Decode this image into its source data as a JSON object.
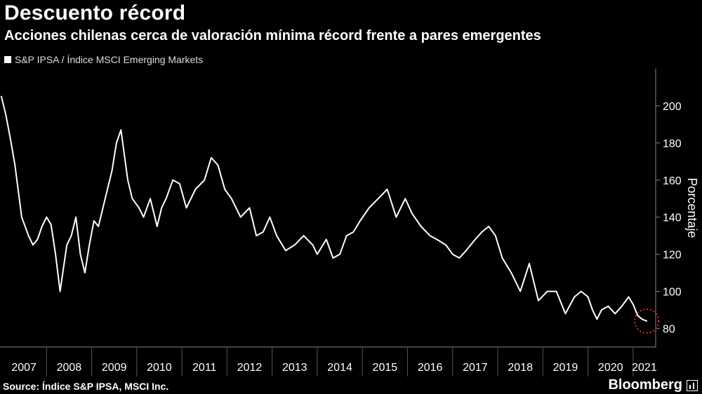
{
  "header": {
    "title": "Descuento récord",
    "subtitle": "Acciones chilenas cerca de valoración mínima récord frente a pares emergentes"
  },
  "footer": {
    "source": "Source: Índice S&P IPSA, MSCI Inc.",
    "brand": "Bloomberg",
    "brand_icon": "bloomberg-chart-icon"
  },
  "colors": {
    "background": "#000000",
    "series": "#ffffff",
    "highlight": "#e03030"
  },
  "chart_data": {
    "type": "line",
    "title": "Descuento récord",
    "ylabel": "Porcentaje",
    "ylim": [
      70,
      220
    ],
    "xlim": [
      2007.0,
      2021.5
    ],
    "y_ticks": [
      80,
      100,
      120,
      140,
      160,
      180,
      200
    ],
    "x_tick_labels": [
      "2007",
      "2008",
      "2009",
      "2010",
      "2011",
      "2012",
      "2013",
      "2014",
      "2015",
      "2016",
      "2017",
      "2018",
      "2019",
      "2020",
      "2021"
    ],
    "y_axis_side": "right",
    "grid": false,
    "legend_position": "top-left",
    "annotations": [
      {
        "type": "dotted-circle",
        "x": 2021.3,
        "y": 84
      }
    ],
    "series": [
      {
        "name": "S&P IPSA / Índice MSCI Emerging Markets",
        "x": [
          2007.0,
          2007.1,
          2007.2,
          2007.3,
          2007.45,
          2007.6,
          2007.7,
          2007.8,
          2007.9,
          2008.0,
          2008.1,
          2008.2,
          2008.3,
          2008.45,
          2008.55,
          2008.65,
          2008.75,
          2008.85,
          2008.95,
          2009.05,
          2009.15,
          2009.3,
          2009.45,
          2009.55,
          2009.65,
          2009.8,
          2009.9,
          2010.05,
          2010.15,
          2010.3,
          2010.45,
          2010.55,
          2010.65,
          2010.8,
          2010.95,
          2011.1,
          2011.3,
          2011.5,
          2011.65,
          2011.8,
          2011.95,
          2012.1,
          2012.3,
          2012.5,
          2012.65,
          2012.8,
          2012.95,
          2013.1,
          2013.3,
          2013.5,
          2013.7,
          2013.9,
          2014.0,
          2014.2,
          2014.35,
          2014.5,
          2014.65,
          2014.8,
          2014.95,
          2015.15,
          2015.35,
          2015.55,
          2015.75,
          2015.95,
          2016.1,
          2016.3,
          2016.5,
          2016.65,
          2016.85,
          2017.0,
          2017.15,
          2017.3,
          2017.5,
          2017.65,
          2017.8,
          2017.95,
          2018.1,
          2018.3,
          2018.5,
          2018.7,
          2018.9,
          2019.1,
          2019.3,
          2019.5,
          2019.7,
          2019.85,
          2020.0,
          2020.1,
          2020.2,
          2020.3,
          2020.45,
          2020.6,
          2020.75,
          2020.9,
          2021.0,
          2021.1,
          2021.2,
          2021.3
        ],
        "values": [
          205,
          195,
          182,
          168,
          140,
          130,
          125,
          128,
          135,
          140,
          136,
          120,
          100,
          125,
          130,
          140,
          120,
          110,
          125,
          138,
          135,
          150,
          165,
          180,
          187,
          160,
          150,
          145,
          140,
          150,
          135,
          145,
          150,
          160,
          158,
          145,
          155,
          160,
          172,
          168,
          155,
          150,
          140,
          145,
          130,
          132,
          140,
          130,
          122,
          125,
          130,
          125,
          120,
          128,
          118,
          120,
          130,
          132,
          138,
          145,
          150,
          155,
          140,
          150,
          142,
          135,
          130,
          128,
          125,
          120,
          118,
          122,
          128,
          132,
          135,
          130,
          118,
          110,
          100,
          115,
          95,
          100,
          100,
          88,
          97,
          100,
          97,
          90,
          85,
          90,
          92,
          88,
          92,
          97,
          93,
          87,
          85,
          84
        ]
      }
    ]
  }
}
